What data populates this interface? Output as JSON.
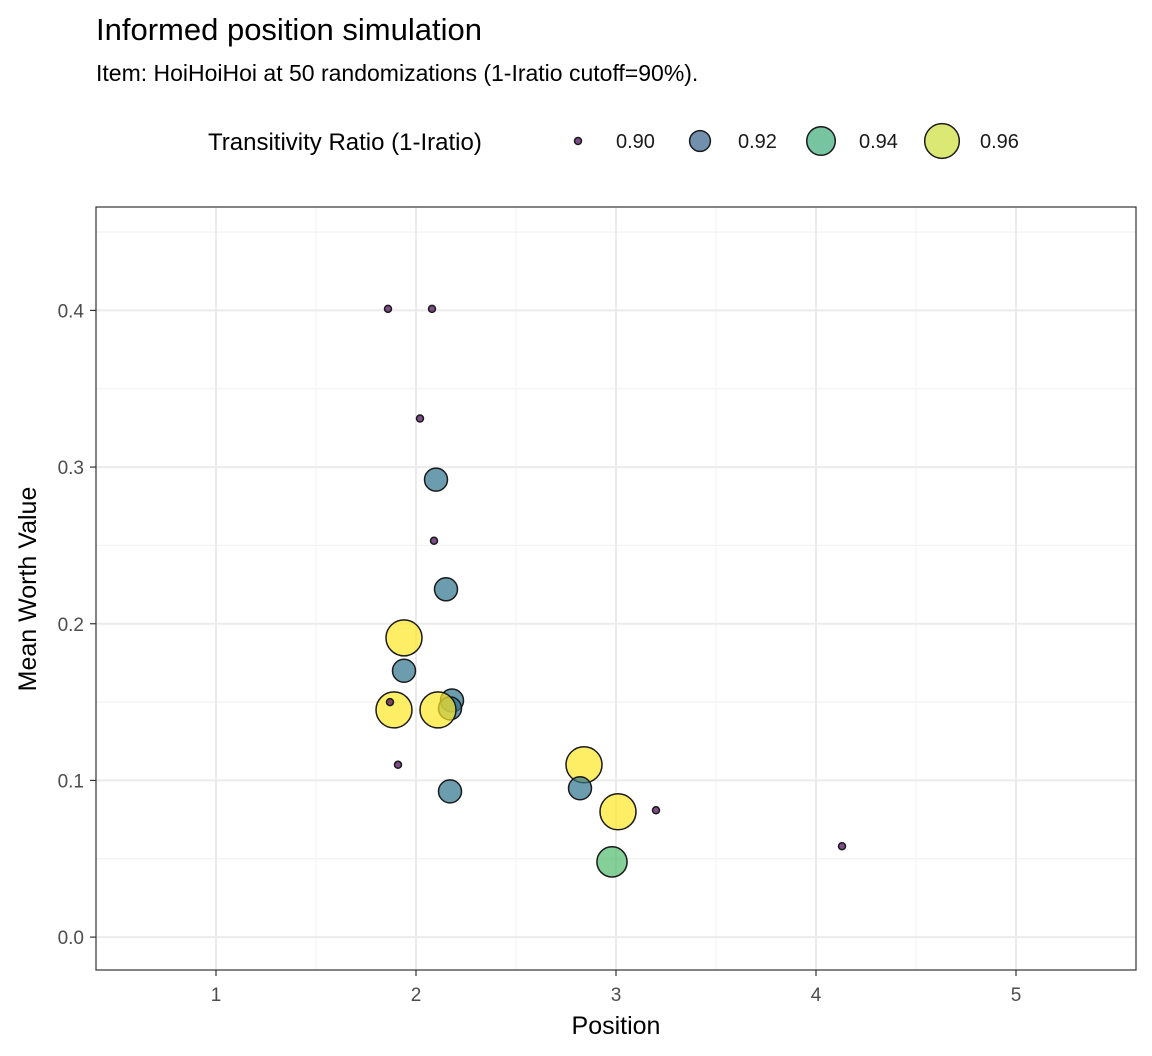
{
  "chart_data": {
    "type": "scatter",
    "title": "Informed position simulation",
    "subtitle": "Item: HoiHoiHoi at 50 randomizations (1-Iratio cutoff=90%).",
    "xlabel": "Position",
    "ylabel": "Mean Worth Value",
    "xlim": [
      0.4,
      5.6
    ],
    "ylim": [
      -0.021,
      0.466
    ],
    "x_ticks": [
      1,
      2,
      3,
      4,
      5
    ],
    "x_tick_labels": [
      "1",
      "2",
      "3",
      "4",
      "5"
    ],
    "y_ticks": [
      0.0,
      0.1,
      0.2,
      0.3,
      0.4
    ],
    "y_tick_labels": [
      "0.0",
      "0.1",
      "0.2",
      "0.3",
      "0.4"
    ],
    "grid": true,
    "legend": {
      "title": "Transitivity Ratio (1-Iratio)",
      "position": "top",
      "entries": [
        {
          "value": 0.9,
          "label": "0.90"
        },
        {
          "value": 0.92,
          "label": "0.92"
        },
        {
          "value": 0.94,
          "label": "0.94"
        },
        {
          "value": 0.96,
          "label": "0.96"
        }
      ]
    },
    "size_scale": {
      "domain": [
        0.9,
        0.965
      ],
      "radius_range": [
        3.5,
        18
      ]
    },
    "color_scale": {
      "domain": [
        0.9,
        0.965
      ],
      "stops": [
        "#440154",
        "#3b528b",
        "#21918c",
        "#5ec962",
        "#fde725"
      ]
    },
    "points": [
      {
        "x": 1.86,
        "y": 0.401,
        "ratio": 0.9
      },
      {
        "x": 2.08,
        "y": 0.401,
        "ratio": 0.9
      },
      {
        "x": 2.02,
        "y": 0.331,
        "ratio": 0.9
      },
      {
        "x": 2.1,
        "y": 0.292,
        "ratio": 0.925
      },
      {
        "x": 2.09,
        "y": 0.253,
        "ratio": 0.9
      },
      {
        "x": 2.15,
        "y": 0.222,
        "ratio": 0.925
      },
      {
        "x": 1.94,
        "y": 0.191,
        "ratio": 0.965
      },
      {
        "x": 1.94,
        "y": 0.17,
        "ratio": 0.925
      },
      {
        "x": 2.18,
        "y": 0.151,
        "ratio": 0.925
      },
      {
        "x": 2.17,
        "y": 0.146,
        "ratio": 0.925
      },
      {
        "x": 1.89,
        "y": 0.145,
        "ratio": 0.965
      },
      {
        "x": 1.87,
        "y": 0.15,
        "ratio": 0.9
      },
      {
        "x": 2.11,
        "y": 0.145,
        "ratio": 0.965
      },
      {
        "x": 1.91,
        "y": 0.11,
        "ratio": 0.9
      },
      {
        "x": 2.17,
        "y": 0.093,
        "ratio": 0.925
      },
      {
        "x": 2.84,
        "y": 0.11,
        "ratio": 0.965
      },
      {
        "x": 2.82,
        "y": 0.095,
        "ratio": 0.925
      },
      {
        "x": 3.01,
        "y": 0.08,
        "ratio": 0.965
      },
      {
        "x": 3.2,
        "y": 0.081,
        "ratio": 0.9
      },
      {
        "x": 2.98,
        "y": 0.048,
        "ratio": 0.945
      },
      {
        "x": 4.13,
        "y": 0.058,
        "ratio": 0.9
      }
    ]
  }
}
